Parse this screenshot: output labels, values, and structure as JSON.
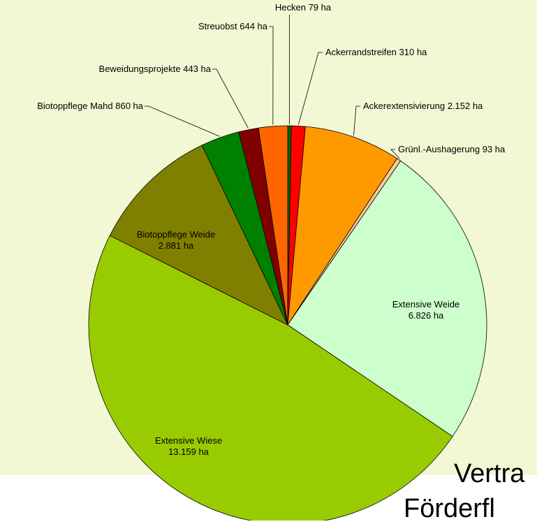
{
  "chart_data": {
    "type": "pie",
    "categories": [
      "Hecken",
      "Ackerrandstreifen",
      "Ackerextensivierung",
      "Grünl.-Aushagerung",
      "Extensive Weide",
      "Extensive Wiese",
      "Biotoppflege Weide",
      "Biotoppflege Mahd",
      "Beweidungsprojekte",
      "Streuobst"
    ],
    "values": [
      79,
      310,
      2152,
      93,
      6826,
      13159,
      2881,
      860,
      443,
      644
    ],
    "value_labels": [
      "79 ha",
      "310 ha",
      "2.152 ha",
      "93 ha",
      "6.826 ha",
      "13.159 ha",
      "2.881 ha",
      "860 ha",
      "443 ha",
      "644 ha"
    ],
    "colors": [
      "#006600",
      "#ff0000",
      "#ff9900",
      "#ffcc99",
      "#ccffcc",
      "#99cc00",
      "#808000",
      "#008000",
      "#800000",
      "#ff6600"
    ],
    "annotations": [
      "Vertra",
      "Förderfl"
    ]
  }
}
